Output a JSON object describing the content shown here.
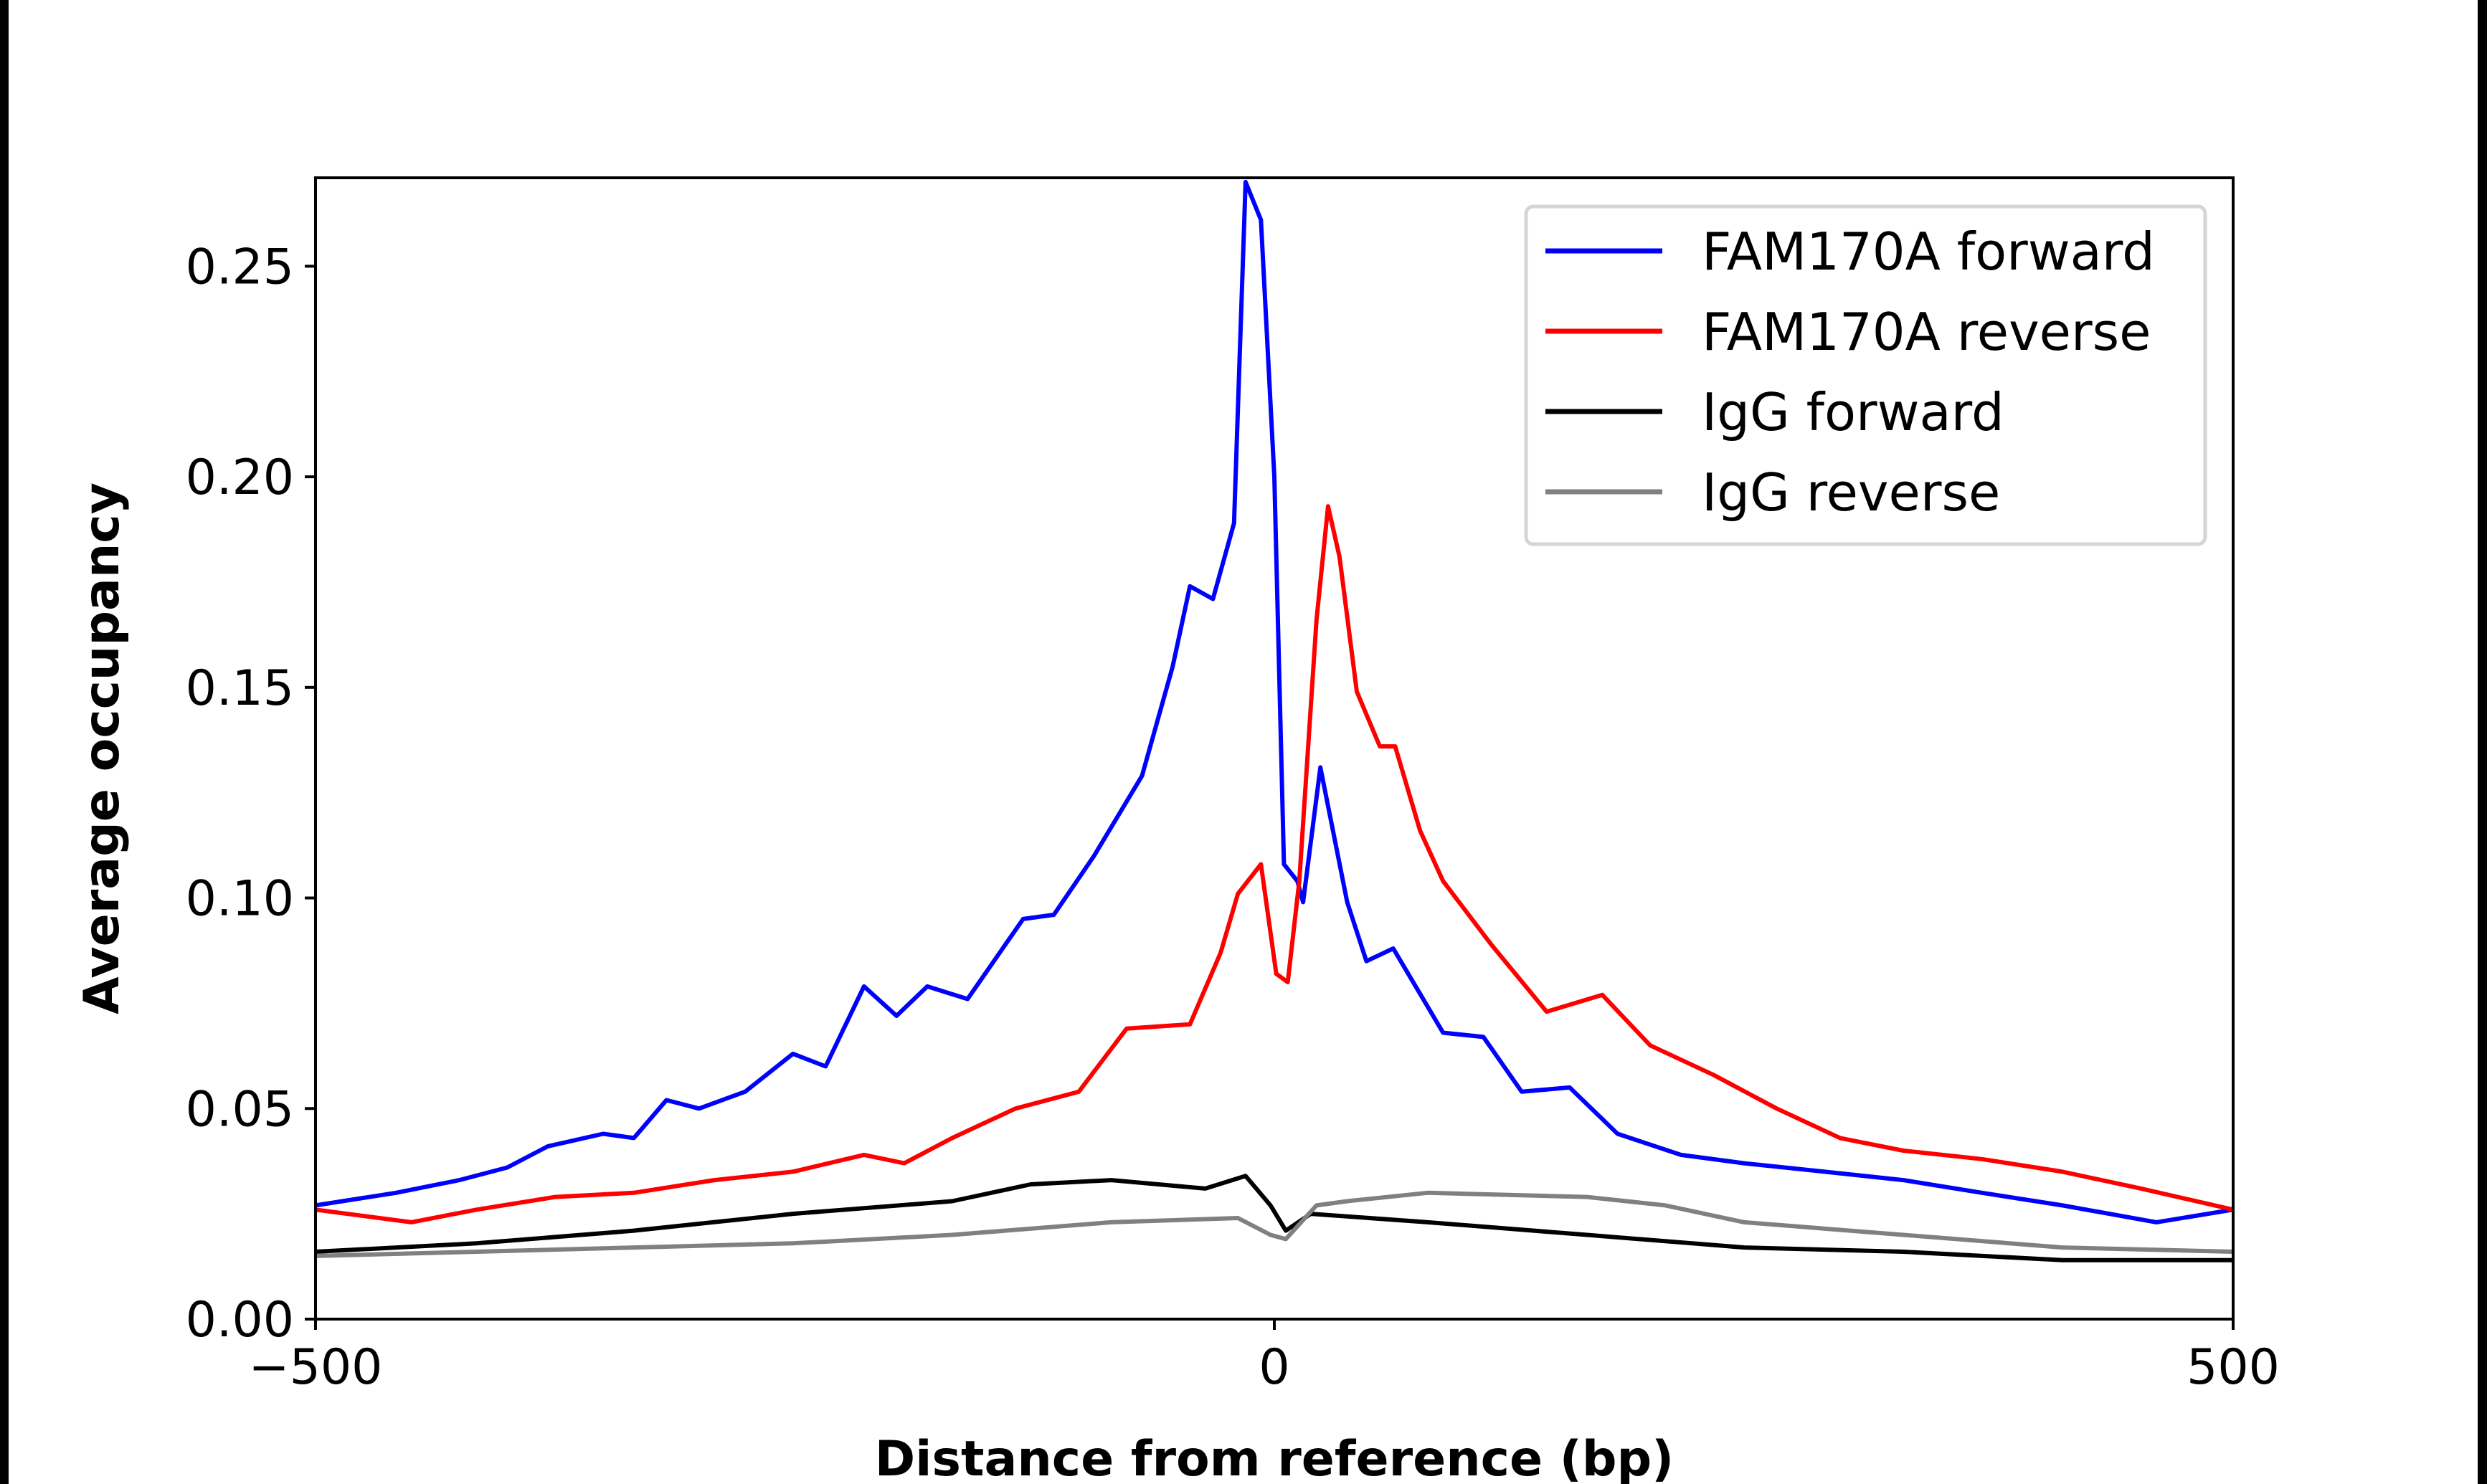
{
  "chart_data": {
    "type": "line",
    "title": "",
    "xlabel": "Distance from reference (bp)",
    "ylabel": "Average occupancy",
    "xlim": [
      -500,
      500
    ],
    "ylim": [
      0,
      0.271
    ],
    "xticks": [
      "−500",
      "0",
      "500"
    ],
    "xtick_values": [
      -500,
      0,
      500
    ],
    "yticks": [
      "0.00",
      "0.05",
      "0.10",
      "0.15",
      "0.20",
      "0.25"
    ],
    "ytick_values": [
      0,
      0.05,
      0.1,
      0.15,
      0.2,
      0.25
    ],
    "grid": false,
    "legend_position": "top-right",
    "series": [
      {
        "name": "FAM170A forward",
        "color": "#0000ff",
        "x": [
          -500,
          -458,
          -425,
          -400,
          -379,
          -350,
          -334,
          -317,
          -300,
          -276,
          -251,
          -234,
          -214,
          -197,
          -181,
          -160,
          -131,
          -115,
          -94,
          -69,
          -53,
          -44,
          -32,
          -21,
          -15,
          -7,
          0,
          5,
          12,
          15,
          24,
          38,
          48,
          62,
          88,
          109,
          129,
          154,
          179,
          212,
          245,
          287,
          328,
          369,
          411,
          460,
          500
        ],
        "y": [
          0.027,
          0.03,
          0.033,
          0.036,
          0.041,
          0.044,
          0.043,
          0.052,
          0.05,
          0.054,
          0.063,
          0.06,
          0.079,
          0.072,
          0.079,
          0.076,
          0.095,
          0.096,
          0.11,
          0.129,
          0.155,
          0.174,
          0.171,
          0.189,
          0.27,
          0.261,
          0.2,
          0.108,
          0.104,
          0.099,
          0.131,
          0.099,
          0.085,
          0.088,
          0.068,
          0.067,
          0.054,
          0.055,
          0.044,
          0.039,
          0.037,
          0.035,
          0.033,
          0.03,
          0.027,
          0.023,
          0.026
        ]
      },
      {
        "name": "FAM170A reverse",
        "color": "#ff0000",
        "x": [
          -500,
          -450,
          -416,
          -375,
          -334,
          -292,
          -251,
          -214,
          -193,
          -168,
          -135,
          -102,
          -77,
          -44,
          -28,
          -19,
          -7,
          1,
          7,
          13,
          22,
          28,
          34,
          43,
          55,
          63,
          76,
          88,
          113,
          142,
          171,
          196,
          229,
          262,
          295,
          328,
          369,
          411,
          452,
          500
        ],
        "y": [
          0.026,
          0.023,
          0.026,
          0.029,
          0.03,
          0.033,
          0.035,
          0.039,
          0.037,
          0.043,
          0.05,
          0.054,
          0.069,
          0.07,
          0.087,
          0.101,
          0.108,
          0.082,
          0.08,
          0.104,
          0.166,
          0.193,
          0.181,
          0.149,
          0.136,
          0.136,
          0.116,
          0.104,
          0.089,
          0.073,
          0.077,
          0.065,
          0.058,
          0.05,
          0.043,
          0.04,
          0.038,
          0.035,
          0.031,
          0.026
        ]
      },
      {
        "name": "IgG forward",
        "color": "#000000",
        "x": [
          -500,
          -416,
          -334,
          -251,
          -168,
          -127,
          -85,
          -36,
          -15,
          -2,
          6,
          19,
          80,
          163,
          245,
          328,
          411,
          500
        ],
        "y": [
          0.016,
          0.018,
          0.021,
          0.025,
          0.028,
          0.032,
          0.033,
          0.031,
          0.034,
          0.027,
          0.021,
          0.025,
          0.023,
          0.02,
          0.017,
          0.016,
          0.014,
          0.014
        ]
      },
      {
        "name": "IgG reverse",
        "color": "#808080",
        "x": [
          -500,
          -416,
          -334,
          -251,
          -168,
          -85,
          -19,
          -2,
          6,
          22,
          38,
          80,
          163,
          204,
          245,
          328,
          411,
          500
        ],
        "y": [
          0.015,
          0.016,
          0.017,
          0.018,
          0.02,
          0.023,
          0.024,
          0.02,
          0.019,
          0.027,
          0.028,
          0.03,
          0.029,
          0.027,
          0.023,
          0.02,
          0.017,
          0.016
        ]
      }
    ]
  }
}
